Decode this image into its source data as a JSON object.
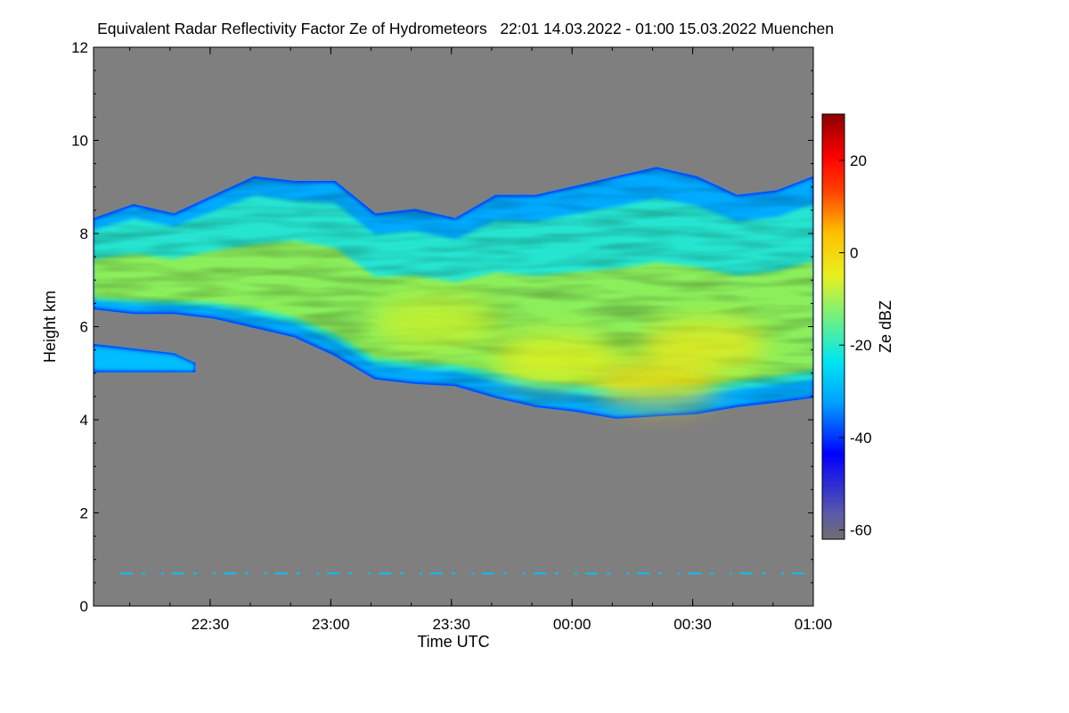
{
  "chart_data": {
    "type": "heatmap",
    "title": "Equivalent Radar Reflectivity Factor Ze of Hydrometeors   22:01 14.03.2022 - 01:00 15.03.2022 Muenchen",
    "xlabel": "Time UTC",
    "ylabel": "Height km",
    "colorbar_label": "Ze dBZ",
    "x_range": [
      "22:01",
      "01:00"
    ],
    "x_ticks": [
      "22:30",
      "23:00",
      "23:30",
      "00:00",
      "00:30",
      "01:00"
    ],
    "y_range": [
      0,
      12
    ],
    "y_ticks": [
      "0",
      "2",
      "4",
      "6",
      "8",
      "10",
      "12"
    ],
    "colorbar_range": [
      -62,
      30
    ],
    "colorbar_ticks": [
      "-60",
      "-40",
      "-20",
      "0",
      "20"
    ],
    "background_color": "#7f7f7f",
    "echo_layers": [
      {
        "name": "main-precipitation-layer",
        "time_min": [
          0,
          10,
          20,
          30,
          40,
          50,
          60,
          70,
          80,
          90,
          100,
          110,
          120,
          130,
          140,
          150,
          160,
          170,
          179
        ],
        "top_km": [
          8.3,
          8.6,
          8.4,
          8.8,
          9.2,
          9.1,
          9.1,
          8.4,
          8.5,
          8.3,
          8.8,
          8.8,
          9.0,
          9.2,
          9.4,
          9.2,
          8.8,
          8.9,
          9.2
        ],
        "base_km": [
          6.4,
          6.3,
          6.3,
          6.2,
          6.0,
          5.8,
          5.4,
          4.9,
          4.8,
          4.75,
          4.5,
          4.3,
          4.2,
          4.05,
          4.1,
          4.15,
          4.3,
          4.4,
          4.5
        ]
      },
      {
        "name": "lower-cloud-patch",
        "time_min": [
          0,
          10,
          20,
          25
        ],
        "top_km": [
          5.6,
          5.5,
          5.4,
          5.2
        ],
        "base_km": [
          5.05,
          5.05,
          5.05,
          5.05
        ]
      }
    ],
    "reflectivity_cores": [
      {
        "time_min": 115,
        "height_km": 5.3,
        "ze_dbz": -4
      },
      {
        "time_min": 140,
        "height_km": 4.8,
        "ze_dbz": 0
      },
      {
        "time_min": 152,
        "height_km": 5.6,
        "ze_dbz": -3
      },
      {
        "time_min": 85,
        "height_km": 6.1,
        "ze_dbz": -6
      }
    ],
    "ground_clutter_line": {
      "height_km": 0.7,
      "ze_dbz": -27
    }
  }
}
